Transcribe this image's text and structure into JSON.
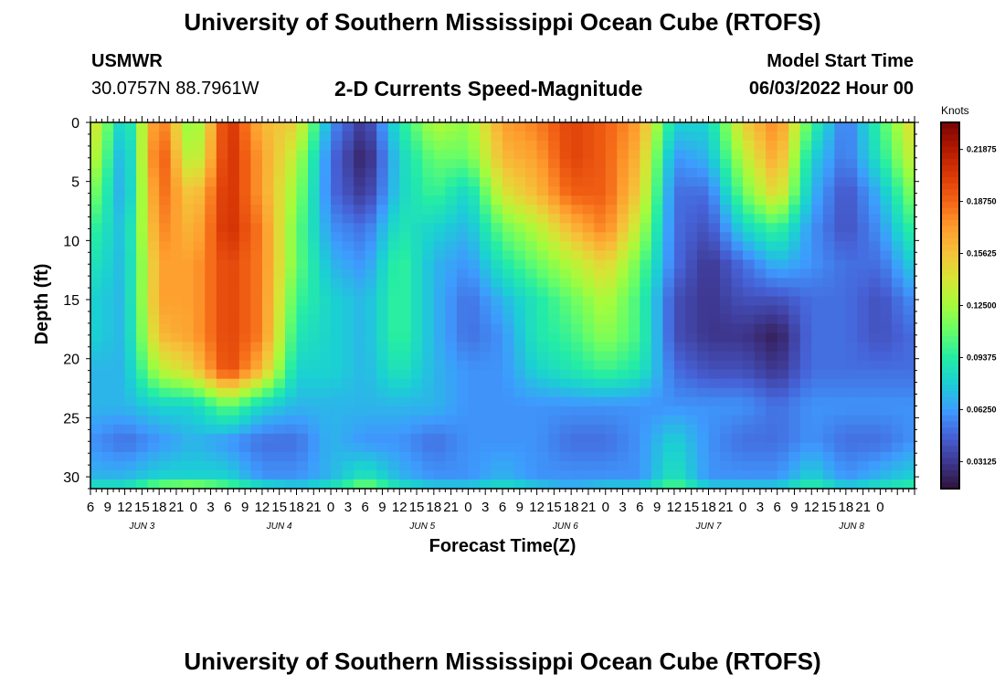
{
  "page": {
    "title": "University of Southern Mississippi Ocean Cube (RTOFS)",
    "station_id": "USMWR",
    "coordinates": "30.0757N  88.7961W",
    "subtitle": "2-D Currents Speed-Magnitude",
    "model_start_label": "Model Start Time",
    "model_start_value": "06/03/2022 Hour 00",
    "footer_title": "University of Southern Mississippi Ocean Cube (RTOFS)"
  },
  "chart_data": {
    "type": "heatmap",
    "title": "2-D Currents Speed-Magnitude",
    "xlabel": "Forecast Time(Z)",
    "ylabel": "Depth (ft)",
    "colorbar_label": "Knots",
    "colorbar_ticks": [
      "0.21875",
      "0.18750",
      "0.15625",
      "0.12500",
      "0.09375",
      "0.06250",
      "0.03125"
    ],
    "colorbar_tick_values": [
      0.21875,
      0.1875,
      0.15625,
      0.125,
      0.09375,
      0.0625,
      0.03125
    ],
    "color_range": [
      0.015,
      0.235
    ],
    "colormap": [
      "#30123b",
      "#3e378f",
      "#4662d7",
      "#3e9bfe",
      "#1bcfd4",
      "#24eca6",
      "#64fd6a",
      "#a4fc3c",
      "#d6e535",
      "#f5c23a",
      "#fe9b2d",
      "#f36315",
      "#d93806",
      "#b11901",
      "#7a0403"
    ],
    "ylim": [
      0,
      31
    ],
    "y_ticks": [
      0,
      5,
      10,
      15,
      20,
      25,
      30
    ],
    "x_hours_range": [
      6,
      150
    ],
    "x_tick_labels": [
      "6",
      "9",
      "12",
      "15",
      "18",
      "21",
      "0",
      "3",
      "6",
      "9",
      "12",
      "15",
      "18",
      "21",
      "0",
      "3",
      "6",
      "9",
      "12",
      "15",
      "18",
      "21",
      "0",
      "3",
      "6",
      "9",
      "12",
      "15",
      "18",
      "21",
      "0",
      "3",
      "6",
      "9",
      "12",
      "15",
      "18",
      "21",
      "0",
      "3",
      "6",
      "9",
      "12",
      "15",
      "18",
      "21",
      "0"
    ],
    "day_labels": [
      {
        "label": "JUN 3",
        "hour": 15
      },
      {
        "label": "JUN 4",
        "hour": 39
      },
      {
        "label": "JUN 5",
        "hour": 64
      },
      {
        "label": "JUN 6",
        "hour": 89
      },
      {
        "label": "JUN 7",
        "hour": 114
      },
      {
        "label": "JUN 8",
        "hour": 139
      }
    ],
    "depths_ft": [
      0,
      3,
      6,
      9,
      12,
      15,
      18,
      21,
      24,
      27,
      30,
      31
    ],
    "times_h": [
      6,
      12,
      18,
      24,
      30,
      36,
      42,
      48,
      54,
      60,
      66,
      72,
      78,
      84,
      90,
      96,
      102,
      108,
      114,
      120,
      126,
      132,
      138,
      144,
      150
    ],
    "values": [
      [
        0.15,
        0.07,
        0.19,
        0.11,
        0.21,
        0.16,
        0.15,
        0.06,
        0.03,
        0.09,
        0.13,
        0.12,
        0.17,
        0.18,
        0.2,
        0.19,
        0.17,
        0.08,
        0.08,
        0.15,
        0.18,
        0.1,
        0.05,
        0.1,
        0.15
      ],
      [
        0.14,
        0.06,
        0.2,
        0.12,
        0.21,
        0.17,
        0.13,
        0.05,
        0.02,
        0.08,
        0.11,
        0.11,
        0.16,
        0.17,
        0.2,
        0.19,
        0.16,
        0.06,
        0.07,
        0.13,
        0.17,
        0.08,
        0.05,
        0.09,
        0.14
      ],
      [
        0.12,
        0.06,
        0.19,
        0.15,
        0.21,
        0.17,
        0.12,
        0.05,
        0.03,
        0.08,
        0.1,
        0.08,
        0.14,
        0.16,
        0.19,
        0.19,
        0.15,
        0.05,
        0.05,
        0.11,
        0.15,
        0.07,
        0.04,
        0.07,
        0.12
      ],
      [
        0.1,
        0.07,
        0.18,
        0.16,
        0.21,
        0.18,
        0.11,
        0.06,
        0.05,
        0.09,
        0.08,
        0.07,
        0.11,
        0.13,
        0.16,
        0.18,
        0.13,
        0.05,
        0.04,
        0.08,
        0.1,
        0.06,
        0.04,
        0.06,
        0.1
      ],
      [
        0.09,
        0.07,
        0.17,
        0.17,
        0.2,
        0.18,
        0.11,
        0.07,
        0.06,
        0.1,
        0.07,
        0.06,
        0.09,
        0.11,
        0.13,
        0.15,
        0.11,
        0.05,
        0.03,
        0.05,
        0.07,
        0.06,
        0.05,
        0.05,
        0.08
      ],
      [
        0.08,
        0.07,
        0.17,
        0.17,
        0.2,
        0.18,
        0.1,
        0.08,
        0.07,
        0.1,
        0.07,
        0.05,
        0.07,
        0.09,
        0.11,
        0.13,
        0.1,
        0.04,
        0.03,
        0.04,
        0.04,
        0.05,
        0.05,
        0.04,
        0.06
      ],
      [
        0.08,
        0.07,
        0.16,
        0.17,
        0.2,
        0.18,
        0.09,
        0.08,
        0.07,
        0.1,
        0.07,
        0.05,
        0.06,
        0.09,
        0.1,
        0.12,
        0.1,
        0.04,
        0.03,
        0.03,
        0.02,
        0.05,
        0.05,
        0.04,
        0.05
      ],
      [
        0.07,
        0.07,
        0.13,
        0.15,
        0.2,
        0.16,
        0.08,
        0.08,
        0.07,
        0.09,
        0.07,
        0.06,
        0.06,
        0.08,
        0.09,
        0.1,
        0.09,
        0.05,
        0.04,
        0.04,
        0.03,
        0.05,
        0.05,
        0.05,
        0.05
      ],
      [
        0.07,
        0.07,
        0.08,
        0.08,
        0.11,
        0.08,
        0.07,
        0.07,
        0.07,
        0.07,
        0.07,
        0.06,
        0.06,
        0.06,
        0.06,
        0.06,
        0.06,
        0.06,
        0.06,
        0.06,
        0.05,
        0.06,
        0.06,
        0.06,
        0.06
      ],
      [
        0.06,
        0.05,
        0.06,
        0.07,
        0.06,
        0.05,
        0.05,
        0.07,
        0.06,
        0.06,
        0.05,
        0.06,
        0.06,
        0.06,
        0.05,
        0.05,
        0.06,
        0.08,
        0.06,
        0.05,
        0.05,
        0.06,
        0.05,
        0.05,
        0.06
      ],
      [
        0.07,
        0.07,
        0.08,
        0.08,
        0.08,
        0.06,
        0.06,
        0.07,
        0.09,
        0.07,
        0.06,
        0.06,
        0.07,
        0.06,
        0.06,
        0.06,
        0.06,
        0.09,
        0.06,
        0.06,
        0.06,
        0.08,
        0.06,
        0.07,
        0.08
      ],
      [
        0.09,
        0.09,
        0.12,
        0.13,
        0.11,
        0.09,
        0.08,
        0.09,
        0.12,
        0.09,
        0.08,
        0.08,
        0.09,
        0.08,
        0.07,
        0.08,
        0.08,
        0.11,
        0.08,
        0.08,
        0.08,
        0.1,
        0.08,
        0.09,
        0.1
      ]
    ]
  }
}
